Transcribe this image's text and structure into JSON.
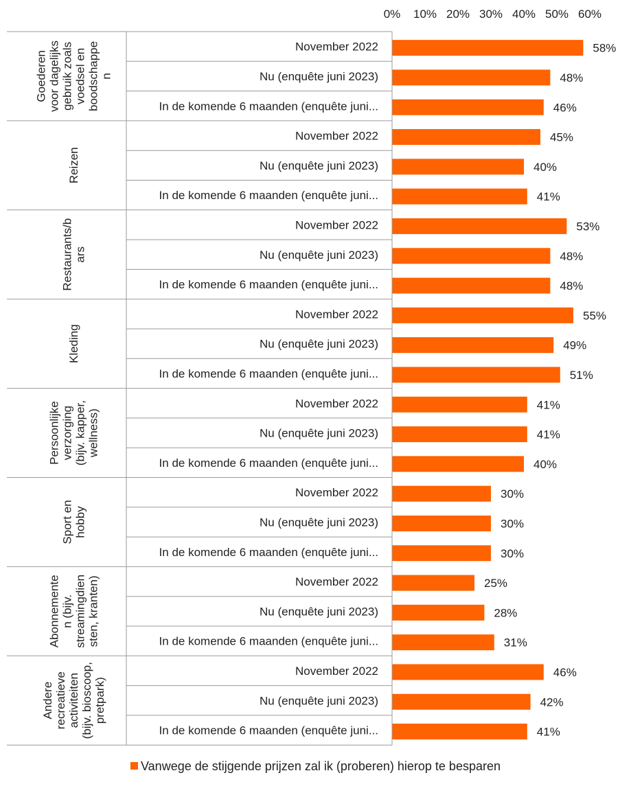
{
  "chart_data": {
    "type": "bar",
    "orientation": "horizontal",
    "xlim": [
      0,
      60
    ],
    "x_ticks": [
      "0%",
      "10%",
      "20%",
      "30%",
      "40%",
      "50%",
      "60%"
    ],
    "x_axis_position": "top",
    "grid": false,
    "legend_position": "bottom",
    "bar_color": "#FF6200",
    "subcategories": [
      "November 2022",
      "Nu (enquête juni 2023)",
      "In de komende 6 maanden (enquête juni..."
    ],
    "groups": [
      {
        "label_lines": [
          "Goederen",
          "voor dagelijks",
          "gebruik zoals",
          "voedsel en",
          "boodschappe",
          "n"
        ],
        "values": [
          58,
          48,
          46
        ]
      },
      {
        "label_lines": [
          "Reizen"
        ],
        "values": [
          45,
          40,
          41
        ]
      },
      {
        "label_lines": [
          "Restaurants/b",
          "ars"
        ],
        "values": [
          53,
          48,
          48
        ]
      },
      {
        "label_lines": [
          "Kleding"
        ],
        "values": [
          55,
          49,
          51
        ]
      },
      {
        "label_lines": [
          "Persoonlijke",
          "verzorging",
          "(bijv. kapper,",
          "wellness)"
        ],
        "values": [
          41,
          41,
          40
        ]
      },
      {
        "label_lines": [
          "Sport en",
          "hobby"
        ],
        "values": [
          30,
          30,
          30
        ]
      },
      {
        "label_lines": [
          "Abonnemente",
          "n (bijv.",
          "streamingdien",
          "sten, kranten)"
        ],
        "values": [
          25,
          28,
          31
        ]
      },
      {
        "label_lines": [
          "Andere",
          "recreatieve",
          "activiteiten",
          "(bijv. bioscoop,",
          "pretpark)"
        ],
        "values": [
          46,
          42,
          41
        ]
      }
    ],
    "value_suffix": "%",
    "legend": [
      {
        "label": "Vanwege de stijgende prijzen zal ik (proberen) hierop te besparen",
        "color": "#FF6200"
      }
    ]
  }
}
